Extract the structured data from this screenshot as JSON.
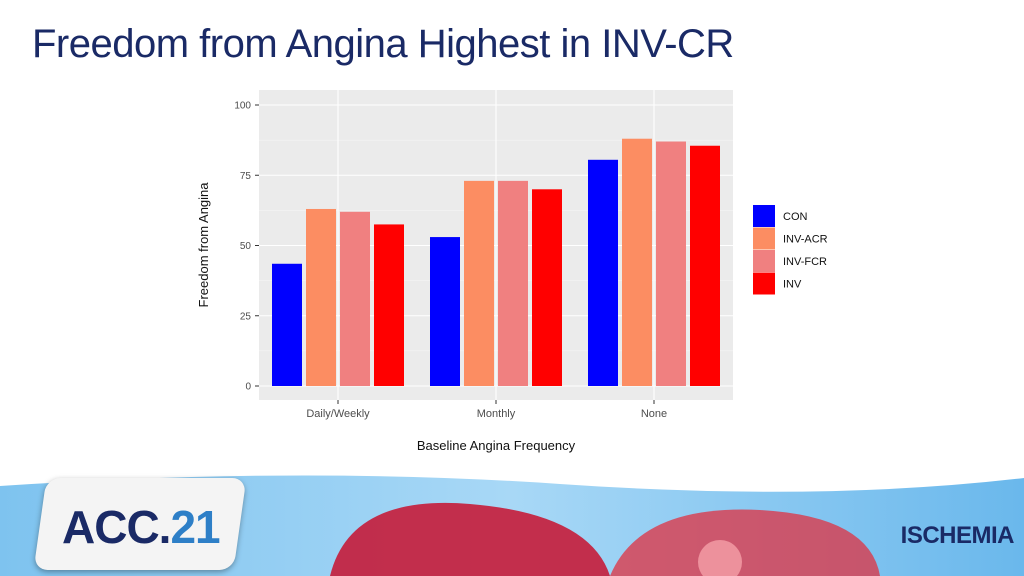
{
  "slide": {
    "title": "Freedom from Angina Highest in INV-CR"
  },
  "branding": {
    "conference_prefix": "ACC.",
    "conference_suffix": "21",
    "trial_name": "ISCHEMIA"
  },
  "colors": {
    "title": "#1a2a66",
    "panel_bg": "#ebebeb",
    "grid": "#ffffff"
  },
  "chart_data": {
    "type": "bar",
    "title": "",
    "xlabel": "Baseline Angina Frequency",
    "ylabel": "Freedom from Angina",
    "ylim": [
      0,
      100
    ],
    "yticks": [
      0,
      25,
      50,
      75,
      100
    ],
    "categories": [
      "Daily/Weekly",
      "Monthly",
      "None"
    ],
    "series": [
      {
        "name": "CON",
        "color": "#0000ff",
        "values": [
          43.5,
          53,
          80.5
        ]
      },
      {
        "name": "INV-ACR",
        "color": "#fc8d62",
        "values": [
          63,
          73,
          88
        ]
      },
      {
        "name": "INV-FCR",
        "color": "#f08080",
        "values": [
          62,
          73,
          87
        ]
      },
      {
        "name": "INV",
        "color": "#ff0000",
        "values": [
          57.5,
          70,
          85.5
        ]
      }
    ],
    "legend_position": "right"
  }
}
